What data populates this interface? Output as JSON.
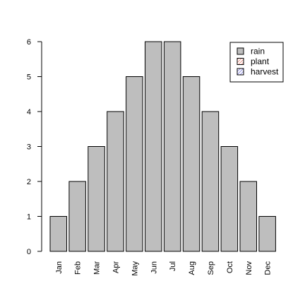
{
  "chart_data": {
    "type": "bar",
    "categories": [
      "Jan",
      "Feb",
      "Mar",
      "Apr",
      "May",
      "Jun",
      "Jul",
      "Aug",
      "Sep",
      "Oct",
      "Nov",
      "Dec"
    ],
    "series": [
      {
        "name": "rain",
        "values": [
          1,
          2,
          3,
          4,
          5,
          6,
          6,
          5,
          4,
          3,
          2,
          1
        ]
      }
    ],
    "yticks": [
      0,
      1,
      2,
      3,
      4,
      5,
      6
    ],
    "ylim": [
      0,
      6
    ],
    "grid": false,
    "legend_position": "top-right",
    "legend": [
      {
        "label": "rain",
        "fill": "solid",
        "color": "#bebebe"
      },
      {
        "label": "plant",
        "fill": "hatched",
        "color": "#e0533c"
      },
      {
        "label": "harvest",
        "fill": "hatched",
        "color": "#4b4bd1"
      }
    ],
    "bar_color": "#bebebe",
    "bar_stroke": "#000000"
  }
}
